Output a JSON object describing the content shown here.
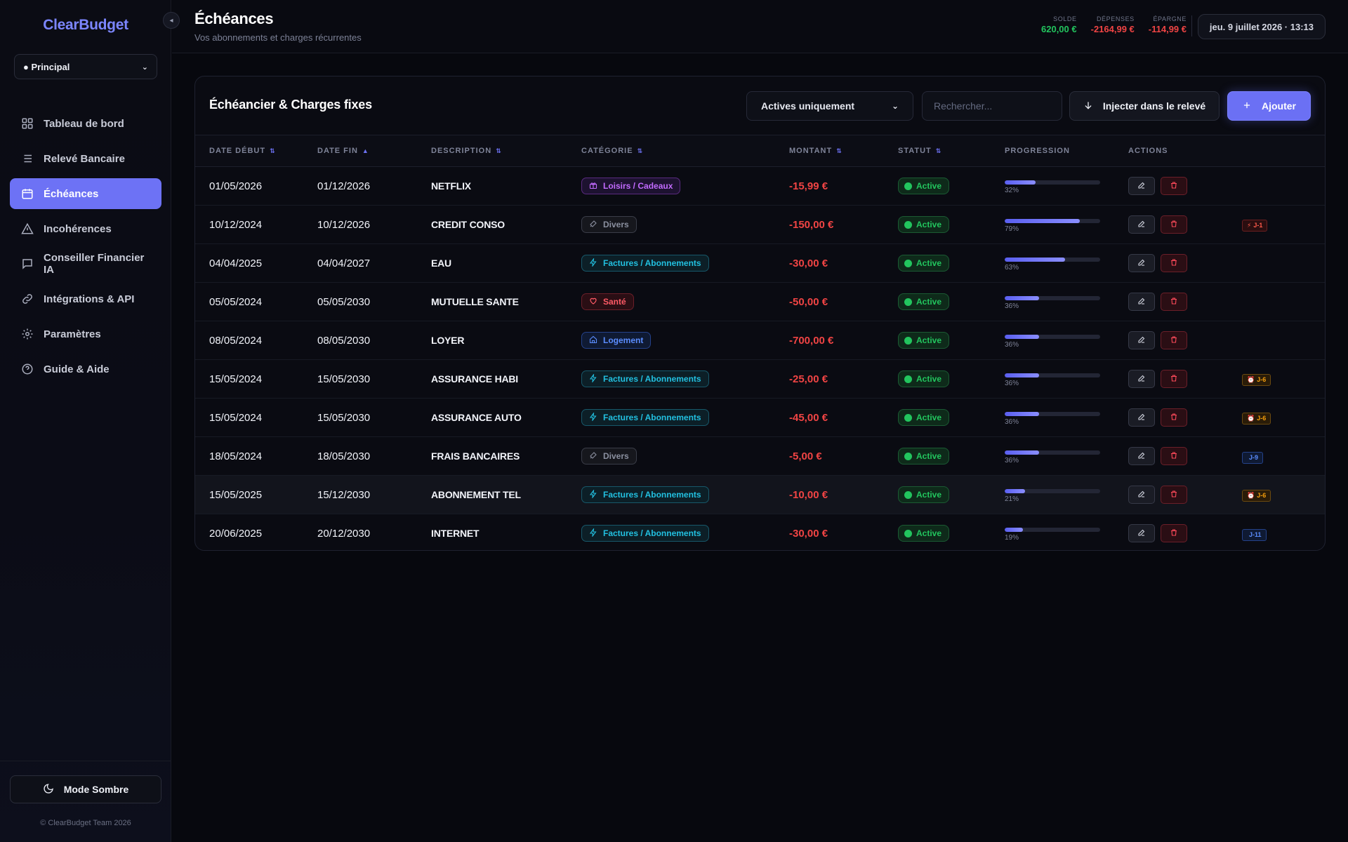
{
  "app": {
    "name": "ClearBudget",
    "copyright": "© ClearBudget Team 2026"
  },
  "sidebar": {
    "collapse_icon": "◂",
    "account": "● Principal",
    "items": [
      {
        "label": "Tableau de bord",
        "icon": "grid-icon",
        "active": false
      },
      {
        "label": "Relevé Bancaire",
        "icon": "list-icon",
        "active": false
      },
      {
        "label": "Échéances",
        "icon": "calendar-icon",
        "active": true
      },
      {
        "label": "Incohérences",
        "icon": "warning-icon",
        "active": false
      },
      {
        "label": "Conseiller Financier IA",
        "icon": "chat-icon",
        "active": false
      },
      {
        "label": "Intégrations & API",
        "icon": "link-icon",
        "active": false
      },
      {
        "label": "Paramètres",
        "icon": "gear-icon",
        "active": false
      },
      {
        "label": "Guide & Aide",
        "icon": "help-icon",
        "active": false
      }
    ],
    "theme_label": "Mode Sombre"
  },
  "header": {
    "title": "Échéances",
    "subtitle": "Vos abonnements et charges récurrentes",
    "kpis": [
      {
        "label": "SOLDE",
        "value": "620,00 €",
        "color": "#22c55e"
      },
      {
        "label": "DÉPENSES",
        "value": "-2164,99 €",
        "color": "#f04444"
      },
      {
        "label": "ÉPARGNE",
        "value": "-114,99 €",
        "color": "#f04444"
      }
    ],
    "datetime": "jeu. 9 juillet 2026 · 13:13"
  },
  "card": {
    "title": "Échéancier & Charges fixes",
    "filter": "Actives uniquement",
    "search_placeholder": "Rechercher...",
    "inject_label": "Injecter dans le relevé",
    "add_label": "Ajouter"
  },
  "table": {
    "columns": [
      {
        "label": "DATE DÉBUT",
        "sort": "⇅"
      },
      {
        "label": "DATE FIN",
        "sort": "▲"
      },
      {
        "label": "DESCRIPTION",
        "sort": "⇅"
      },
      {
        "label": "CATÉGORIE",
        "sort": "⇅"
      },
      {
        "label": "MONTANT",
        "sort": "⇅"
      },
      {
        "label": "STATUT",
        "sort": "⇅"
      },
      {
        "label": "PROGRESSION",
        "sort": ""
      },
      {
        "label": "ACTIONS",
        "sort": ""
      }
    ],
    "rows": [
      {
        "start": "01/05/2026",
        "end": "01/12/2026",
        "desc": "NETFLIX",
        "cat": "Loisirs / Cadeaux",
        "cat_style": "purple",
        "cat_icon": "gift-icon",
        "amount": "-15,99 €",
        "status": "Active",
        "progress": 32,
        "progress_label": "32%",
        "due": "",
        "due_style": ""
      },
      {
        "start": "10/12/2024",
        "end": "10/12/2026",
        "desc": "CREDIT CONSO",
        "cat": "Divers",
        "cat_style": "gray",
        "cat_icon": "tag-icon",
        "amount": "-150,00 €",
        "status": "Active",
        "progress": 79,
        "progress_label": "79%",
        "due": "J-1",
        "due_style": "red"
      },
      {
        "start": "04/04/2025",
        "end": "04/04/2027",
        "desc": "EAU",
        "cat": "Factures / Abonnements",
        "cat_style": "cyan",
        "cat_icon": "bolt-icon",
        "amount": "-30,00 €",
        "status": "Active",
        "progress": 63,
        "progress_label": "63%",
        "due": "",
        "due_style": ""
      },
      {
        "start": "05/05/2024",
        "end": "05/05/2030",
        "desc": "MUTUELLE SANTE",
        "cat": "Santé",
        "cat_style": "red",
        "cat_icon": "heart-icon",
        "amount": "-50,00 €",
        "status": "Active",
        "progress": 36,
        "progress_label": "36%",
        "due": "",
        "due_style": ""
      },
      {
        "start": "08/05/2024",
        "end": "08/05/2030",
        "desc": "LOYER",
        "cat": "Logement",
        "cat_style": "blue",
        "cat_icon": "home-icon",
        "amount": "-700,00 €",
        "status": "Active",
        "progress": 36,
        "progress_label": "36%",
        "due": "",
        "due_style": ""
      },
      {
        "start": "15/05/2024",
        "end": "15/05/2030",
        "desc": "ASSURANCE HABI",
        "cat": "Factures / Abonnements",
        "cat_style": "cyan",
        "cat_icon": "bolt-icon",
        "amount": "-25,00 €",
        "status": "Active",
        "progress": 36,
        "progress_label": "36%",
        "due": "J-6",
        "due_style": "orange"
      },
      {
        "start": "15/05/2024",
        "end": "15/05/2030",
        "desc": "ASSURANCE AUTO",
        "cat": "Factures / Abonnements",
        "cat_style": "cyan",
        "cat_icon": "bolt-icon",
        "amount": "-45,00 €",
        "status": "Active",
        "progress": 36,
        "progress_label": "36%",
        "due": "J-6",
        "due_style": "orange"
      },
      {
        "start": "18/05/2024",
        "end": "18/05/2030",
        "desc": "FRAIS BANCAIRES",
        "cat": "Divers",
        "cat_style": "gray",
        "cat_icon": "tag-icon",
        "amount": "-5,00 €",
        "status": "Active",
        "progress": 36,
        "progress_label": "36%",
        "due": "J-9",
        "due_style": "blue"
      },
      {
        "start": "15/05/2025",
        "end": "15/12/2030",
        "desc": "ABONNEMENT TEL",
        "cat": "Factures / Abonnements",
        "cat_style": "cyan",
        "cat_icon": "bolt-icon",
        "amount": "-10,00 €",
        "status": "Active",
        "progress": 21,
        "progress_label": "21%",
        "due": "J-6",
        "due_style": "orange"
      },
      {
        "start": "20/06/2025",
        "end": "20/12/2030",
        "desc": "INTERNET",
        "cat": "Factures / Abonnements",
        "cat_style": "cyan",
        "cat_icon": "bolt-icon",
        "amount": "-30,00 €",
        "status": "Active",
        "progress": 19,
        "progress_label": "19%",
        "due": "J-11",
        "due_style": "blue"
      }
    ]
  }
}
